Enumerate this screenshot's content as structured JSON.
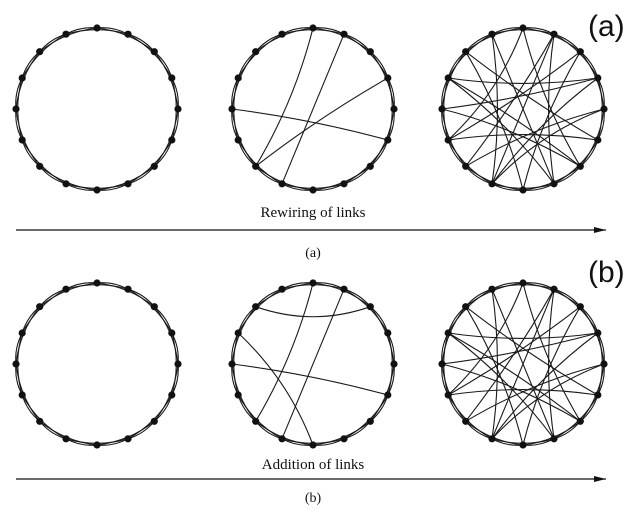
{
  "colors": {
    "ink": "#111111",
    "background": "#ffffff"
  },
  "row_a": {
    "panel_label": "(a)",
    "arrow_label": "Rewiring of links",
    "caption": "(a)",
    "networks": [
      {
        "node_count": 16,
        "neighbors": 2,
        "rewired_links": []
      },
      {
        "node_count": 16,
        "neighbors": 2,
        "rewired_links": [
          [
            1,
            9
          ],
          [
            3,
            10
          ],
          [
            5,
            12
          ],
          [
            0,
            10
          ]
        ]
      },
      {
        "node_count": 16,
        "neighbors": 2,
        "rewired_links": [
          [
            0,
            6
          ],
          [
            1,
            9
          ],
          [
            2,
            11
          ],
          [
            3,
            13
          ],
          [
            4,
            10
          ],
          [
            5,
            14
          ],
          [
            6,
            12
          ],
          [
            7,
            15
          ],
          [
            8,
            2
          ],
          [
            9,
            4
          ],
          [
            10,
            1
          ],
          [
            11,
            5
          ],
          [
            12,
            3
          ],
          [
            13,
            7
          ],
          [
            14,
            8
          ],
          [
            15,
            9
          ],
          [
            1,
            7
          ],
          [
            3,
            9
          ],
          [
            6,
            13
          ],
          [
            11,
            0
          ]
        ]
      }
    ]
  },
  "row_b": {
    "panel_label": "(b)",
    "arrow_label": "Addition of links",
    "caption": "(b)",
    "networks": [
      {
        "node_count": 16,
        "neighbors": 2,
        "added_links": []
      },
      {
        "node_count": 16,
        "neighbors": 2,
        "added_links": [
          [
            1,
            9
          ],
          [
            2,
            14
          ],
          [
            5,
            12
          ],
          [
            8,
            13
          ],
          [
            0,
            10
          ]
        ]
      },
      {
        "node_count": 16,
        "neighbors": 2,
        "added_links": [
          [
            0,
            6
          ],
          [
            1,
            9
          ],
          [
            2,
            11
          ],
          [
            3,
            13
          ],
          [
            4,
            10
          ],
          [
            5,
            14
          ],
          [
            6,
            12
          ],
          [
            7,
            15
          ],
          [
            8,
            2
          ],
          [
            9,
            4
          ],
          [
            10,
            1
          ],
          [
            11,
            5
          ],
          [
            12,
            3
          ],
          [
            13,
            7
          ],
          [
            14,
            8
          ],
          [
            15,
            9
          ],
          [
            1,
            7
          ],
          [
            3,
            9
          ],
          [
            6,
            13
          ],
          [
            11,
            0
          ]
        ]
      }
    ]
  }
}
